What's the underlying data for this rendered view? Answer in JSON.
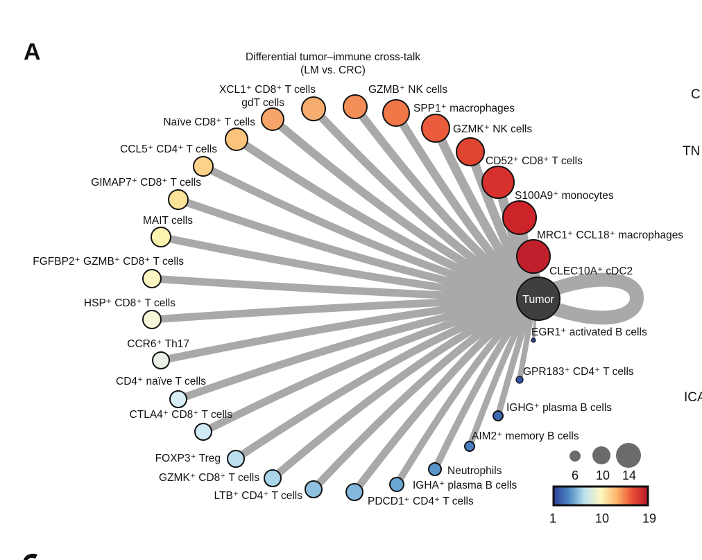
{
  "panel_label": "A",
  "title_line1": "Differential tumor–immune cross-talk",
  "title_line2": "(LM vs. CRC)",
  "hub": {
    "label": "Tumor",
    "color": "#3f3f3f"
  },
  "edge_color": "#a9a9a9",
  "nodes": [
    {
      "name": "XCL1⁺ CD8⁺ T cells",
      "value": 13,
      "color": "#f6a46a"
    },
    {
      "name": "gdT cells",
      "value": 13,
      "color": "#f6ad6f"
    },
    {
      "name": "Naïve CD8⁺ T cells",
      "value": 12,
      "color": "#fbc37c"
    },
    {
      "name": "CCL5⁺ CD4⁺ T cells",
      "value": 11,
      "color": "#fdd38c"
    },
    {
      "name": "GIMAP7⁺ CD8⁺ T cells",
      "value": 11,
      "color": "#fde399"
    },
    {
      "name": "MAIT cells",
      "value": 11,
      "color": "#fdf3b0"
    },
    {
      "name": "FGFBP2⁺ GZMB⁺ CD8⁺ T cells",
      "value": 10,
      "color": "#fdf6c3"
    },
    {
      "name": "HSP⁺ CD8⁺ T cells",
      "value": 10,
      "color": "#f7f6d8"
    },
    {
      "name": "CCR6⁺ Th17",
      "value": 9,
      "color": "#eaf2e8"
    },
    {
      "name": "CD4⁺ naïve T cells",
      "value": 9,
      "color": "#d8eef6"
    },
    {
      "name": "CTLA4⁺ CD8⁺ T cells",
      "value": 9,
      "color": "#cfe9f5"
    },
    {
      "name": "FOXP3⁺ Treg",
      "value": 9,
      "color": "#bde0f0"
    },
    {
      "name": "GZMK⁺ CD8⁺ T cells",
      "value": 9,
      "color": "#a9d4ea"
    },
    {
      "name": "LTB⁺ CD4⁺ T cells",
      "value": 9,
      "color": "#8ec1e0"
    },
    {
      "name": "PDCD1⁺ CD4⁺ T cells",
      "value": 9,
      "color": "#82b8dc"
    },
    {
      "name": "IGHA⁺ plasma B cells",
      "value": 8,
      "color": "#6aa7d3"
    },
    {
      "name": "Neutrophils",
      "value": 8,
      "color": "#5b96cb"
    },
    {
      "name": "AIM2⁺ memory B cells",
      "value": 7,
      "color": "#4a7fbf"
    },
    {
      "name": "IGHG⁺ plasma B cells",
      "value": 6,
      "color": "#3d68b3"
    },
    {
      "name": "GPR183⁺ CD4⁺ T cells",
      "value": 5,
      "color": "#3552a3"
    },
    {
      "name": "EGR1⁺ activated B cells",
      "value": 2,
      "color": "#2b3f95"
    },
    {
      "name": "CLEC10A⁺ cDC2",
      "value": 19,
      "color": "#c0202b"
    },
    {
      "name": "MRC1⁺ CCL18⁺ macrophages",
      "value": 19,
      "color": "#cc2429"
    },
    {
      "name": "S100A9⁺ monocytes",
      "value": 18,
      "color": "#d8302d"
    },
    {
      "name": "CD52⁺ CD8⁺ T cells",
      "value": 16,
      "color": "#e04532"
    },
    {
      "name": "GZMK⁺ NK cells",
      "value": 15,
      "color": "#ea5c3b"
    },
    {
      "name": "SPP1⁺ macrophages",
      "value": 14,
      "color": "#f07748"
    },
    {
      "name": "GZMB⁺ NK cells",
      "value": 13,
      "color": "#f38e58"
    }
  ],
  "size_legend": {
    "values": [
      "6",
      "10",
      "14"
    ]
  },
  "color_legend": {
    "ticks": [
      "1",
      "10",
      "19"
    ],
    "stops": [
      "#2c3d96",
      "#4f8ac4",
      "#bfe3ef",
      "#fdf7c0",
      "#fcb86c",
      "#ea4f35",
      "#b7182b"
    ]
  },
  "edge_labels": [
    "C",
    "TN",
    "ICA"
  ]
}
